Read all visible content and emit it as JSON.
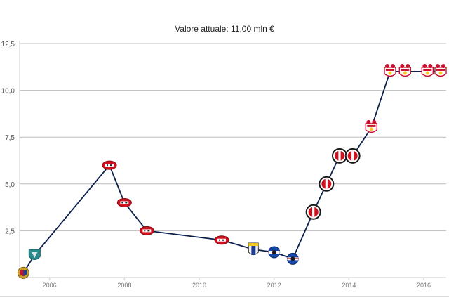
{
  "chart_data": {
    "type": "line",
    "title": "Valore attuale: 11,00 mln €",
    "xlabel": "",
    "ylabel": "",
    "xlim": [
      2005.2,
      2016.6
    ],
    "ylim": [
      0,
      12.5
    ],
    "grid": true,
    "y_ticks": [
      {
        "value": 2.5,
        "label": "2,5"
      },
      {
        "value": 5.0,
        "label": "5,0"
      },
      {
        "value": 7.5,
        "label": "7,5"
      },
      {
        "value": 10.0,
        "label": "10,0"
      },
      {
        "value": 12.5,
        "label": "12,5"
      }
    ],
    "x_ticks": [
      {
        "value": 2006,
        "label": "2006"
      },
      {
        "value": 2008,
        "label": "2008"
      },
      {
        "value": 2010,
        "label": "2010"
      },
      {
        "value": 2012,
        "label": "2012"
      },
      {
        "value": 2014,
        "label": "2014"
      },
      {
        "value": 2016,
        "label": "2016"
      }
    ],
    "series": [
      {
        "line_color": "#0d1f4d",
        "points": [
          {
            "x": 2005.3,
            "y": 0.25,
            "badge": "club-red-blue-crest"
          },
          {
            "x": 2005.6,
            "y": 1.2,
            "badge": "club-teal-crest"
          },
          {
            "x": 2007.6,
            "y": 6.0,
            "badge": "club-red-az-crest"
          },
          {
            "x": 2008.0,
            "y": 4.0,
            "badge": "club-red-az-crest"
          },
          {
            "x": 2008.6,
            "y": 2.5,
            "badge": "club-red-az-crest"
          },
          {
            "x": 2010.6,
            "y": 2.0,
            "badge": "club-red-az-crest"
          },
          {
            "x": 2011.45,
            "y": 1.5,
            "badge": "club-parma-crest"
          },
          {
            "x": 2012.0,
            "y": 1.35,
            "badge": "club-sampdoria-crest"
          },
          {
            "x": 2012.5,
            "y": 1.0,
            "badge": "club-sampdoria-crest"
          },
          {
            "x": 2013.05,
            "y": 3.5,
            "badge": "club-feyenoord-crest"
          },
          {
            "x": 2013.4,
            "y": 5.0,
            "badge": "club-feyenoord-crest"
          },
          {
            "x": 2013.75,
            "y": 6.5,
            "badge": "club-feyenoord-crest"
          },
          {
            "x": 2014.1,
            "y": 6.5,
            "badge": "club-feyenoord-crest"
          },
          {
            "x": 2014.6,
            "y": 8.0,
            "badge": "club-southampton-crest"
          },
          {
            "x": 2015.1,
            "y": 11.0,
            "badge": "club-southampton-crest"
          },
          {
            "x": 2015.5,
            "y": 11.0,
            "badge": "club-southampton-crest"
          },
          {
            "x": 2016.1,
            "y": 11.0,
            "badge": "club-southampton-crest"
          },
          {
            "x": 2016.45,
            "y": 11.0,
            "badge": "club-southampton-crest"
          }
        ]
      }
    ]
  }
}
